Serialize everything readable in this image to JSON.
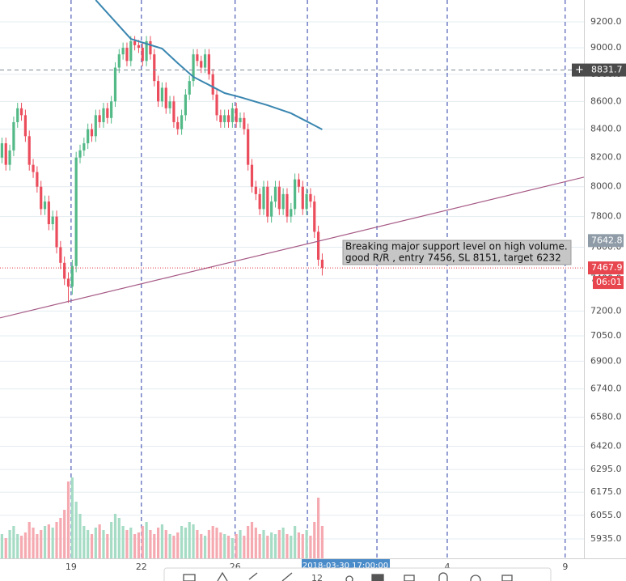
{
  "chart_data": {
    "type": "candlestick",
    "xlim": [
      -0.5,
      149
    ],
    "ylim": [
      5838,
      9372
    ],
    "log_y": true,
    "grid": true,
    "yticks": [
      {
        "value": 9200,
        "label": "9200.0"
      },
      {
        "value": 9000,
        "label": "9000.0"
      },
      {
        "value": 8800,
        "label": "8800.0"
      },
      {
        "value": 8600,
        "label": "8600.0"
      },
      {
        "value": 8400,
        "label": "8400.0"
      },
      {
        "value": 8200,
        "label": "8200.0"
      },
      {
        "value": 8000,
        "label": "8000.0"
      },
      {
        "value": 7800,
        "label": "7800.0"
      },
      {
        "value": 7600,
        "label": "7600.0"
      },
      {
        "value": 7400,
        "label": "7400.0"
      },
      {
        "value": 7200,
        "label": "7200.0"
      },
      {
        "value": 7050,
        "label": "7050.0"
      },
      {
        "value": 6900,
        "label": "6900.0"
      },
      {
        "value": 6740,
        "label": "6740.0"
      },
      {
        "value": 6580,
        "label": "6580.0"
      },
      {
        "value": 6420,
        "label": "6420.0"
      },
      {
        "value": 6295,
        "label": "6295.0"
      },
      {
        "value": 6175,
        "label": "6175.0"
      },
      {
        "value": 6055,
        "label": "6055.0"
      },
      {
        "value": 5935,
        "label": "5935.0"
      }
    ],
    "xticks": [
      {
        "value": 17.7,
        "label": "19"
      },
      {
        "value": 35.7,
        "label": "22"
      },
      {
        "value": 59.7,
        "label": "26"
      },
      {
        "value": 114.0,
        "label": "4"
      },
      {
        "value": 144.2,
        "label": "9"
      }
    ],
    "vlines": [
      17.7,
      35.7,
      59.7,
      78.2,
      96.0,
      114.0,
      144.2
    ],
    "up_color": "#53b987",
    "down_color": "#eb4d5c",
    "volume_up_color": "#a6dcc5",
    "volume_down_color": "#f5aab1",
    "open": [
      8200,
      8300,
      8150,
      8250,
      8450,
      8550,
      8500,
      8350,
      8150,
      8100,
      8000,
      7850,
      7900,
      7750,
      7800,
      7600,
      7500,
      7400,
      7350,
      7480,
      8200,
      8250,
      8300,
      8400,
      8350,
      8500,
      8450,
      8550,
      8480,
      8600,
      8850,
      8950,
      9000,
      8900,
      9050,
      9020,
      9000,
      8900,
      9050,
      8950,
      8750,
      8600,
      8700,
      8550,
      8600,
      8450,
      8400,
      8500,
      8650,
      8750,
      8950,
      8900,
      8850,
      8950,
      8800,
      8650,
      8500,
      8450,
      8500,
      8450,
      8550,
      8450,
      8480,
      8400,
      8150,
      8000,
      7950,
      7850,
      8000,
      7800,
      7900,
      8000,
      7850,
      7950,
      7800,
      7850,
      8050,
      8000,
      7850,
      7950,
      7900,
      7700,
      7520
    ],
    "high": [
      8340,
      8340,
      8290,
      8490,
      8590,
      8590,
      8540,
      8390,
      8190,
      8140,
      8040,
      7940,
      7940,
      7840,
      7840,
      7640,
      7540,
      7440,
      7520,
      8240,
      8290,
      8340,
      8440,
      8440,
      8540,
      8540,
      8590,
      8590,
      8640,
      8890,
      8990,
      9040,
      9040,
      9090,
      9090,
      9060,
      9040,
      9090,
      9090,
      8990,
      8790,
      8740,
      8740,
      8640,
      8640,
      8490,
      8540,
      8690,
      8790,
      8990,
      8990,
      8940,
      8990,
      8990,
      8840,
      8690,
      8540,
      8540,
      8540,
      8590,
      8590,
      8520,
      8520,
      8440,
      8190,
      8040,
      7990,
      8040,
      8040,
      7940,
      8040,
      8040,
      7990,
      7990,
      7890,
      8090,
      8090,
      8040,
      7990,
      7990,
      7940,
      7740,
      7560
    ],
    "low": [
      8160,
      8110,
      8110,
      8210,
      8410,
      8460,
      8310,
      8110,
      8060,
      7960,
      7810,
      7810,
      7710,
      7710,
      7560,
      7460,
      7360,
      7250,
      7300,
      7440,
      8160,
      8210,
      8260,
      8310,
      8310,
      8410,
      8410,
      8440,
      8440,
      8560,
      8810,
      8910,
      8860,
      8860,
      8980,
      8960,
      8860,
      8860,
      8910,
      8710,
      8560,
      8560,
      8510,
      8510,
      8410,
      8360,
      8360,
      8460,
      8610,
      8710,
      8860,
      8810,
      8810,
      8760,
      8610,
      8460,
      8410,
      8410,
      8410,
      8410,
      8410,
      8410,
      8360,
      8110,
      7960,
      7910,
      7810,
      7810,
      7760,
      7760,
      7860,
      7810,
      7810,
      7760,
      7760,
      7810,
      7960,
      7810,
      7810,
      7860,
      7660,
      7480,
      7420
    ],
    "close": [
      8300,
      8150,
      8250,
      8450,
      8550,
      8500,
      8350,
      8150,
      8100,
      8000,
      7850,
      7900,
      7750,
      7800,
      7600,
      7500,
      7400,
      7350,
      7480,
      8200,
      8250,
      8300,
      8400,
      8350,
      8500,
      8450,
      8550,
      8480,
      8600,
      8850,
      8950,
      9000,
      8900,
      9050,
      9020,
      9000,
      8900,
      9050,
      8950,
      8750,
      8600,
      8700,
      8550,
      8600,
      8450,
      8400,
      8500,
      8650,
      8750,
      8950,
      8900,
      8850,
      8950,
      8800,
      8650,
      8500,
      8450,
      8500,
      8450,
      8550,
      8450,
      8480,
      8400,
      8150,
      8000,
      7950,
      7850,
      8000,
      7800,
      7900,
      8000,
      7850,
      7950,
      7800,
      7850,
      8050,
      8000,
      7850,
      7950,
      7900,
      7700,
      7520,
      7467.9
    ],
    "volume": [
      30,
      25,
      35,
      40,
      30,
      28,
      32,
      45,
      38,
      30,
      35,
      40,
      42,
      38,
      45,
      50,
      60,
      95,
      100,
      70,
      55,
      40,
      35,
      30,
      38,
      42,
      35,
      30,
      45,
      55,
      50,
      40,
      35,
      38,
      30,
      32,
      40,
      45,
      35,
      30,
      38,
      42,
      35,
      30,
      28,
      32,
      40,
      38,
      45,
      42,
      35,
      30,
      28,
      35,
      40,
      38,
      32,
      30,
      28,
      25,
      30,
      35,
      28,
      40,
      45,
      38,
      30,
      35,
      28,
      32,
      30,
      35,
      38,
      30,
      28,
      40,
      32,
      30,
      35,
      28,
      45,
      75,
      40
    ],
    "moving_average": {
      "color": "#3a86b0",
      "x": [
        24,
        33,
        41,
        45,
        49,
        53,
        57,
        61,
        68,
        74,
        78,
        82
      ],
      "values": [
        9372,
        9068,
        8994,
        8884,
        8781,
        8721,
        8661,
        8631,
        8572,
        8514,
        8456,
        8398
      ]
    },
    "trendline": {
      "color": "#a65a86",
      "x": [
        -0.5,
        149
      ],
      "values": [
        7158,
        8065
      ]
    },
    "crosshair_price": 8831.7,
    "trend_price": 7642.8,
    "last_price": 7467.9,
    "countdown": "06:01",
    "annotation": [
      "Breaking major support level on high volume.",
      "good R/R , entry 7456, SL 8151, target 6232"
    ],
    "date_label": "2018-03-30 17:00:00",
    "toolbar_text": "12"
  }
}
